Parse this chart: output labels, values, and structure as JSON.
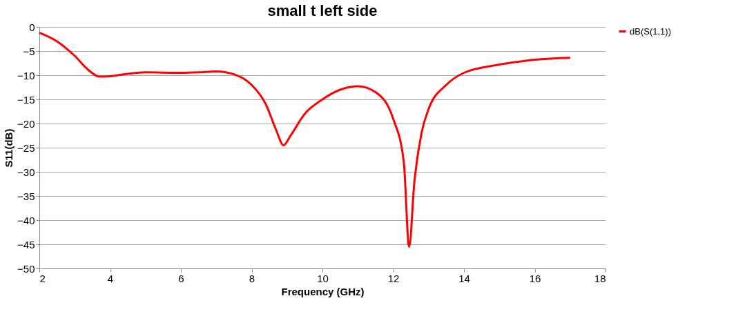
{
  "chart_data": {
    "type": "line",
    "title": "small t left side",
    "xlabel": "Frequency (GHz)",
    "ylabel": "S11(dB)",
    "x": [
      2,
      2.5,
      3,
      3.4,
      3.7,
      4,
      4.5,
      5,
      6,
      6.5,
      7,
      7.5,
      8,
      8.4,
      8.7,
      8.9,
      9.1,
      9.5,
      10,
      10.5,
      11,
      11.5,
      12,
      12.3,
      12.45,
      12.6,
      12.8,
      13,
      13.5,
      14,
      15,
      16,
      17
    ],
    "series": [
      {
        "name": "dB(S(1,1))",
        "color": "#ff0000",
        "values": [
          -1.2,
          -3,
          -6,
          -9,
          -10.3,
          -10.2,
          -9.7,
          -9.4,
          -9.5,
          -9.4,
          -9.2,
          -9.8,
          -12,
          -16,
          -21.5,
          -24.5,
          -22.5,
          -18,
          -15,
          -13,
          -12.3,
          -13.5,
          -19,
          -28,
          -45.5,
          -32,
          -22,
          -17,
          -12,
          -9.5,
          -7.8,
          -6.8,
          -6.4
        ]
      }
    ],
    "xlim": [
      2,
      18
    ],
    "xticks": [
      2,
      4,
      6,
      8,
      10,
      12,
      14,
      16,
      18
    ],
    "ylim": [
      -50,
      0
    ],
    "yticks": [
      0,
      -5,
      -10,
      -15,
      -20,
      -25,
      -30,
      -35,
      -40,
      -45,
      -50
    ],
    "grid": "y",
    "legend": "right",
    "marker": "none",
    "line_style": "solid"
  }
}
